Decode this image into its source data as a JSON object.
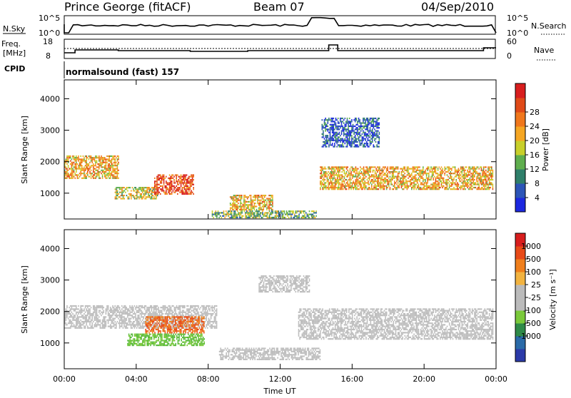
{
  "header": {
    "station": "Prince George (fitACF)",
    "beam": "Beam 07",
    "date": "04/Sep/2010"
  },
  "nsky_panel": {
    "left_label": "N.Sky",
    "left_ticks": [
      "10^5",
      "10^0"
    ],
    "right_ticks": [
      "10^5",
      "10^0"
    ],
    "right_label": "N.Search"
  },
  "freq_panel": {
    "left_label_1": "Freq.",
    "left_label_2": "[MHz]",
    "left_ticks": [
      "18",
      "8"
    ],
    "right_ticks": [
      "60",
      "0"
    ],
    "right_label": "Nave"
  },
  "cpid": {
    "label": "CPID",
    "value": "normalsound (fast) 157"
  },
  "chart_data": [
    {
      "type": "heatmap",
      "title": "Power",
      "ylabel": "Slant Range [km]",
      "yticks": [
        "1000",
        "2000",
        "3000",
        "4000"
      ],
      "ylim": [
        180,
        4600
      ],
      "xlim": [
        0,
        24
      ],
      "colorbar": {
        "label": "Power [dB]",
        "ticks": [
          "4",
          "8",
          "12",
          "16",
          "20",
          "24",
          "28"
        ],
        "colors": [
          "#1c28e0",
          "#2c55b8",
          "#2f7f6a",
          "#5fae4e",
          "#c8cf2a",
          "#f5a623",
          "#f0771c",
          "#e04a18",
          "#d81e1e"
        ]
      },
      "regions": [
        {
          "t0": 0.0,
          "t1": 3.0,
          "r0": 1500,
          "r1": 2200,
          "level": 5
        },
        {
          "t0": 2.8,
          "t1": 5.2,
          "r0": 850,
          "r1": 1200,
          "level": 4
        },
        {
          "t0": 5.0,
          "t1": 7.2,
          "r0": 1000,
          "r1": 1600,
          "level": 7
        },
        {
          "t0": 9.2,
          "t1": 11.6,
          "r0": 500,
          "r1": 950,
          "level": 5
        },
        {
          "t0": 8.2,
          "t1": 14.0,
          "r0": 220,
          "r1": 450,
          "level": 3
        },
        {
          "t0": 14.2,
          "t1": 23.8,
          "r0": 1150,
          "r1": 1850,
          "level": 5
        },
        {
          "t0": 14.3,
          "t1": 17.5,
          "r0": 2500,
          "r1": 3400,
          "level": 1
        }
      ]
    },
    {
      "type": "heatmap",
      "title": "Velocity",
      "ylabel": "Slant Range [km]",
      "yticks": [
        "1000",
        "2000",
        "3000",
        "4000"
      ],
      "ylim": [
        180,
        4600
      ],
      "xlim": [
        0,
        24
      ],
      "xticks": [
        "00:00",
        "04:00",
        "08:00",
        "12:00",
        "16:00",
        "20:00",
        "00:00"
      ],
      "xlabel": "Time UT",
      "colorbar": {
        "label": "Velocity [m s⁻¹]",
        "ticks": [
          "1000",
          "500",
          "100",
          "25",
          "-25",
          "-100",
          "-500",
          "-1000"
        ],
        "colors": [
          "#2b3aa8",
          "#2a6aa8",
          "#2f8a48",
          "#7ac93a",
          "#bbbbbb",
          "#bbbbbb",
          "#f2b340",
          "#f07f1c",
          "#e84a18",
          "#d81e1e"
        ]
      },
      "regions": [
        {
          "t0": 0.0,
          "t1": 8.5,
          "r0": 1500,
          "r1": 2200,
          "v": "gray"
        },
        {
          "t0": 4.5,
          "t1": 7.8,
          "r0": 1350,
          "r1": 1850,
          "v": "orange"
        },
        {
          "t0": 3.5,
          "t1": 7.8,
          "r0": 950,
          "r1": 1300,
          "v": "green"
        },
        {
          "t0": 8.6,
          "t1": 14.2,
          "r0": 480,
          "r1": 850,
          "v": "gray"
        },
        {
          "t0": 13.0,
          "t1": 23.8,
          "r0": 1150,
          "r1": 2100,
          "v": "gray"
        },
        {
          "t0": 10.8,
          "t1": 13.6,
          "r0": 2650,
          "r1": 3150,
          "v": "gray"
        }
      ]
    }
  ]
}
